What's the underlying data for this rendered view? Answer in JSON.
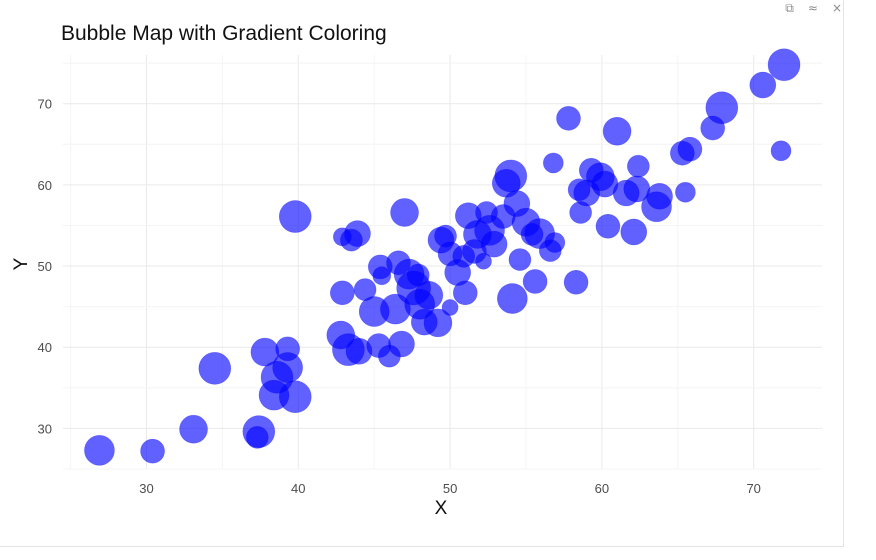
{
  "window": {
    "controls": [
      {
        "name": "copy-icon",
        "glyph": "⧉"
      },
      {
        "name": "collapse-icon",
        "glyph": "≈"
      },
      {
        "name": "close-icon",
        "glyph": "×"
      }
    ]
  },
  "chart_data": {
    "type": "scatter",
    "title": "Bubble Map with Gradient Coloring",
    "xlabel": "X",
    "ylabel": "Y",
    "xlim": [
      24.5,
      74.5
    ],
    "ylim": [
      25,
      76
    ],
    "xticks": [
      30,
      40,
      50,
      60,
      70
    ],
    "yticks": [
      30,
      40,
      50,
      60,
      70
    ],
    "grid": true,
    "color": "#0000ff",
    "opacity": 0.62,
    "points": [
      {
        "x": 26.9,
        "y": 27.3,
        "size": 15
      },
      {
        "x": 30.4,
        "y": 27.2,
        "size": 12
      },
      {
        "x": 33.1,
        "y": 29.9,
        "size": 14
      },
      {
        "x": 34.5,
        "y": 37.4,
        "size": 16
      },
      {
        "x": 37.4,
        "y": 29.6,
        "size": 16
      },
      {
        "x": 37.3,
        "y": 28.9,
        "size": 11
      },
      {
        "x": 37.8,
        "y": 39.4,
        "size": 14
      },
      {
        "x": 39.3,
        "y": 39.8,
        "size": 12
      },
      {
        "x": 38.6,
        "y": 36.3,
        "size": 16
      },
      {
        "x": 39.3,
        "y": 37.5,
        "size": 15
      },
      {
        "x": 38.4,
        "y": 34.1,
        "size": 15
      },
      {
        "x": 39.8,
        "y": 33.9,
        "size": 16
      },
      {
        "x": 39.8,
        "y": 56.1,
        "size": 16
      },
      {
        "x": 42.9,
        "y": 46.7,
        "size": 12
      },
      {
        "x": 42.9,
        "y": 53.6,
        "size": 9
      },
      {
        "x": 43.5,
        "y": 53.2,
        "size": 11
      },
      {
        "x": 43.9,
        "y": 54.0,
        "size": 13
      },
      {
        "x": 42.8,
        "y": 41.5,
        "size": 14
      },
      {
        "x": 43.3,
        "y": 39.7,
        "size": 16
      },
      {
        "x": 44.0,
        "y": 39.5,
        "size": 13
      },
      {
        "x": 44.4,
        "y": 47.1,
        "size": 11
      },
      {
        "x": 45.0,
        "y": 44.4,
        "size": 15
      },
      {
        "x": 45.4,
        "y": 49.9,
        "size": 12
      },
      {
        "x": 45.3,
        "y": 40.2,
        "size": 12
      },
      {
        "x": 45.5,
        "y": 48.8,
        "size": 9
      },
      {
        "x": 46.0,
        "y": 38.9,
        "size": 11
      },
      {
        "x": 46.4,
        "y": 44.7,
        "size": 15
      },
      {
        "x": 46.8,
        "y": 40.4,
        "size": 13
      },
      {
        "x": 46.6,
        "y": 50.4,
        "size": 12
      },
      {
        "x": 47.0,
        "y": 56.6,
        "size": 14
      },
      {
        "x": 47.3,
        "y": 49.0,
        "size": 15
      },
      {
        "x": 47.6,
        "y": 47.3,
        "size": 17
      },
      {
        "x": 47.9,
        "y": 48.9,
        "size": 11
      },
      {
        "x": 48.3,
        "y": 43.1,
        "size": 13
      },
      {
        "x": 48.0,
        "y": 45.3,
        "size": 15
      },
      {
        "x": 48.6,
        "y": 46.4,
        "size": 14
      },
      {
        "x": 49.2,
        "y": 43.0,
        "size": 14
      },
      {
        "x": 49.4,
        "y": 53.2,
        "size": 13
      },
      {
        "x": 49.7,
        "y": 53.7,
        "size": 11
      },
      {
        "x": 50.0,
        "y": 51.5,
        "size": 12
      },
      {
        "x": 50.0,
        "y": 44.9,
        "size": 8
      },
      {
        "x": 50.5,
        "y": 49.2,
        "size": 13
      },
      {
        "x": 50.9,
        "y": 51.2,
        "size": 11
      },
      {
        "x": 51.0,
        "y": 46.7,
        "size": 12
      },
      {
        "x": 51.2,
        "y": 56.2,
        "size": 13
      },
      {
        "x": 51.6,
        "y": 51.8,
        "size": 12
      },
      {
        "x": 51.8,
        "y": 53.9,
        "size": 14
      },
      {
        "x": 52.2,
        "y": 50.6,
        "size": 8
      },
      {
        "x": 52.4,
        "y": 56.6,
        "size": 11
      },
      {
        "x": 52.6,
        "y": 54.4,
        "size": 15
      },
      {
        "x": 52.9,
        "y": 52.7,
        "size": 13
      },
      {
        "x": 53.5,
        "y": 56.1,
        "size": 12
      },
      {
        "x": 53.7,
        "y": 60.2,
        "size": 14
      },
      {
        "x": 54.0,
        "y": 61.1,
        "size": 16
      },
      {
        "x": 54.1,
        "y": 46.0,
        "size": 15
      },
      {
        "x": 54.4,
        "y": 57.7,
        "size": 13
      },
      {
        "x": 54.6,
        "y": 50.8,
        "size": 11
      },
      {
        "x": 55.0,
        "y": 55.4,
        "size": 14
      },
      {
        "x": 55.4,
        "y": 53.9,
        "size": 11
      },
      {
        "x": 55.6,
        "y": 48.1,
        "size": 12
      },
      {
        "x": 55.9,
        "y": 54.0,
        "size": 15
      },
      {
        "x": 56.6,
        "y": 51.9,
        "size": 11
      },
      {
        "x": 56.8,
        "y": 62.7,
        "size": 10
      },
      {
        "x": 56.9,
        "y": 52.9,
        "size": 10
      },
      {
        "x": 57.8,
        "y": 68.2,
        "size": 12
      },
      {
        "x": 58.3,
        "y": 48.0,
        "size": 12
      },
      {
        "x": 58.5,
        "y": 59.4,
        "size": 11
      },
      {
        "x": 58.6,
        "y": 56.6,
        "size": 11
      },
      {
        "x": 59.0,
        "y": 59.0,
        "size": 13
      },
      {
        "x": 59.3,
        "y": 61.8,
        "size": 12
      },
      {
        "x": 59.9,
        "y": 61.0,
        "size": 14
      },
      {
        "x": 60.2,
        "y": 60.1,
        "size": 13
      },
      {
        "x": 60.4,
        "y": 54.9,
        "size": 12
      },
      {
        "x": 61.0,
        "y": 66.6,
        "size": 14
      },
      {
        "x": 61.6,
        "y": 59.0,
        "size": 13
      },
      {
        "x": 62.1,
        "y": 54.2,
        "size": 13
      },
      {
        "x": 62.4,
        "y": 62.3,
        "size": 11
      },
      {
        "x": 62.3,
        "y": 59.5,
        "size": 13
      },
      {
        "x": 63.6,
        "y": 57.3,
        "size": 15
      },
      {
        "x": 63.8,
        "y": 58.6,
        "size": 13
      },
      {
        "x": 65.3,
        "y": 63.9,
        "size": 12
      },
      {
        "x": 65.5,
        "y": 59.1,
        "size": 10
      },
      {
        "x": 65.8,
        "y": 64.4,
        "size": 12
      },
      {
        "x": 67.3,
        "y": 67.0,
        "size": 12
      },
      {
        "x": 67.9,
        "y": 69.5,
        "size": 16
      },
      {
        "x": 70.6,
        "y": 72.3,
        "size": 13
      },
      {
        "x": 71.8,
        "y": 64.2,
        "size": 10
      },
      {
        "x": 72.0,
        "y": 74.8,
        "size": 16
      }
    ]
  }
}
